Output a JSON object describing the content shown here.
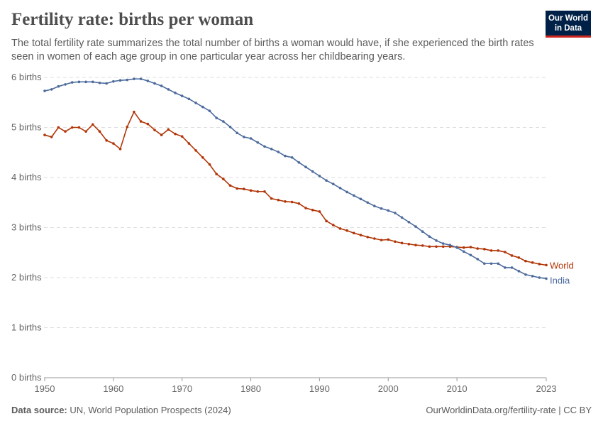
{
  "header": {
    "title": "Fertility rate: births per woman",
    "subtitle": "The total fertility rate summarizes the total number of births a woman would have, if she experienced the birth rates seen in women of each age group in one particular year across her childbearing years.",
    "logo": "Our World in Data"
  },
  "footer": {
    "source_label": "Data source:",
    "source": "UN, World Population Prospects (2024)",
    "link": "OurWorldinData.org/fertility-rate | CC BY"
  },
  "chart_data": {
    "type": "line",
    "title": "Fertility rate: births per woman",
    "xlim": [
      1950,
      2023
    ],
    "ylim": [
      0,
      6
    ],
    "grid": "horizontal dashed",
    "legend": "inline-right",
    "x_ticks": [
      {
        "v": 1950,
        "label": "1950"
      },
      {
        "v": 1960,
        "label": "1960"
      },
      {
        "v": 1970,
        "label": "1970"
      },
      {
        "v": 1980,
        "label": "1980"
      },
      {
        "v": 1990,
        "label": "1990"
      },
      {
        "v": 2000,
        "label": "2000"
      },
      {
        "v": 2010,
        "label": "2010"
      },
      {
        "v": 2023,
        "label": "2023"
      }
    ],
    "y_ticks": [
      {
        "v": 0,
        "label": "0 births"
      },
      {
        "v": 1,
        "label": "1 births"
      },
      {
        "v": 2,
        "label": "2 births"
      },
      {
        "v": 3,
        "label": "3 births"
      },
      {
        "v": 4,
        "label": "4 births"
      },
      {
        "v": 5,
        "label": "5 births"
      },
      {
        "v": 6,
        "label": "6 births"
      }
    ],
    "x_start": 1950,
    "series": [
      {
        "name": "World",
        "color": "#b13507",
        "values": [
          4.85,
          4.81,
          5.0,
          4.92,
          5.0,
          5.0,
          4.92,
          5.06,
          4.92,
          4.74,
          4.68,
          4.57,
          5.01,
          5.31,
          5.12,
          5.07,
          4.95,
          4.85,
          4.96,
          4.87,
          4.82,
          4.68,
          4.54,
          4.4,
          4.26,
          4.07,
          3.97,
          3.84,
          3.78,
          3.77,
          3.74,
          3.72,
          3.72,
          3.58,
          3.55,
          3.52,
          3.51,
          3.48,
          3.39,
          3.35,
          3.32,
          3.13,
          3.05,
          2.98,
          2.94,
          2.89,
          2.85,
          2.81,
          2.78,
          2.75,
          2.76,
          2.72,
          2.69,
          2.67,
          2.65,
          2.64,
          2.62,
          2.62,
          2.62,
          2.62,
          2.61,
          2.6,
          2.61,
          2.58,
          2.57,
          2.54,
          2.54,
          2.51,
          2.44,
          2.4,
          2.33,
          2.3,
          2.27,
          2.25
        ]
      },
      {
        "name": "India",
        "color": "#4c6a9c",
        "values": [
          5.73,
          5.76,
          5.82,
          5.86,
          5.9,
          5.91,
          5.91,
          5.91,
          5.89,
          5.88,
          5.92,
          5.94,
          5.95,
          5.97,
          5.97,
          5.93,
          5.88,
          5.83,
          5.76,
          5.69,
          5.63,
          5.57,
          5.49,
          5.41,
          5.33,
          5.19,
          5.12,
          5.01,
          4.89,
          4.81,
          4.78,
          4.7,
          4.62,
          4.57,
          4.51,
          4.43,
          4.4,
          4.3,
          4.21,
          4.12,
          4.03,
          3.94,
          3.87,
          3.79,
          3.71,
          3.64,
          3.57,
          3.5,
          3.43,
          3.38,
          3.34,
          3.29,
          3.2,
          3.11,
          3.02,
          2.92,
          2.82,
          2.74,
          2.68,
          2.65,
          2.6,
          2.52,
          2.45,
          2.37,
          2.28,
          2.28,
          2.28,
          2.2,
          2.2,
          2.13,
          2.06,
          2.03,
          2.0,
          1.98
        ]
      }
    ]
  }
}
